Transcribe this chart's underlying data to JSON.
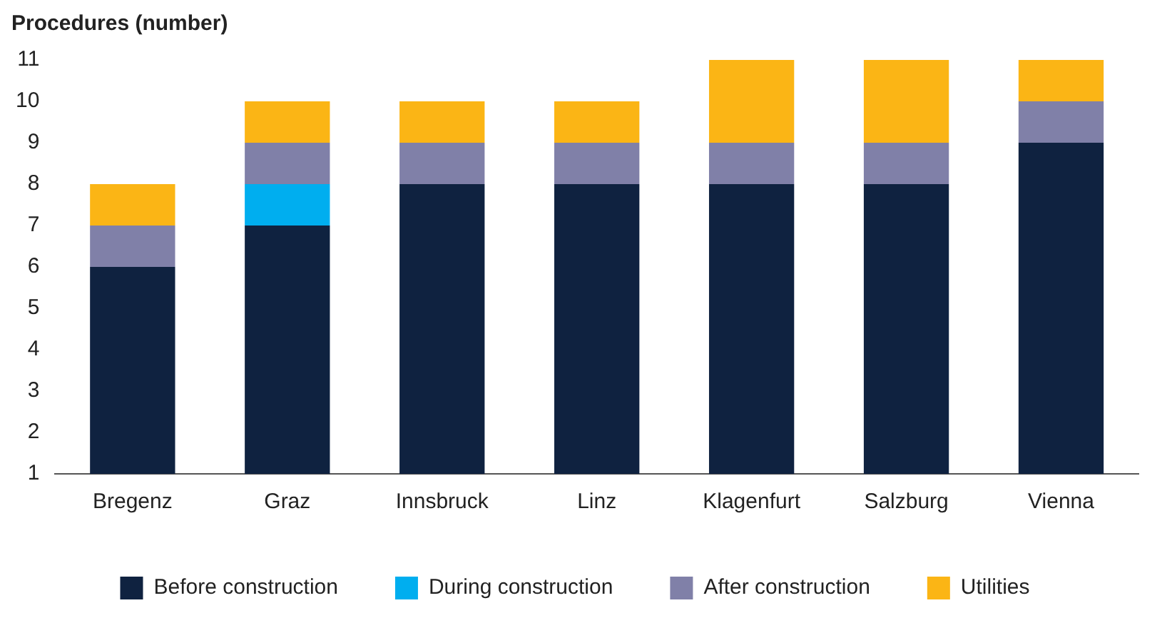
{
  "chart_data": {
    "type": "bar",
    "ylabel": "Procedures (number)",
    "categories": [
      "Bregenz",
      "Graz",
      "Innsbruck",
      "Linz",
      "Klagenfurt",
      "Salzburg",
      "Vienna"
    ],
    "series": [
      {
        "name": "Before construction",
        "color": "#0f2240",
        "values": [
          6,
          7,
          8,
          8,
          8,
          8,
          9
        ]
      },
      {
        "name": "During construction",
        "color": "#00aeef",
        "values": [
          null,
          1,
          null,
          null,
          null,
          null,
          null
        ]
      },
      {
        "name": "After construction",
        "color": "#8080a8",
        "values": [
          1,
          1,
          1,
          1,
          1,
          1,
          1
        ]
      },
      {
        "name": "Utilities",
        "color": "#fbb515",
        "values": [
          1,
          1,
          1,
          1,
          2,
          2,
          1
        ]
      }
    ],
    "stacked": true,
    "ylim": [
      1,
      11
    ],
    "yticks": [
      1,
      2,
      3,
      4,
      5,
      6,
      7,
      8,
      9,
      10,
      11
    ],
    "grid": false,
    "legend": "bottom"
  }
}
